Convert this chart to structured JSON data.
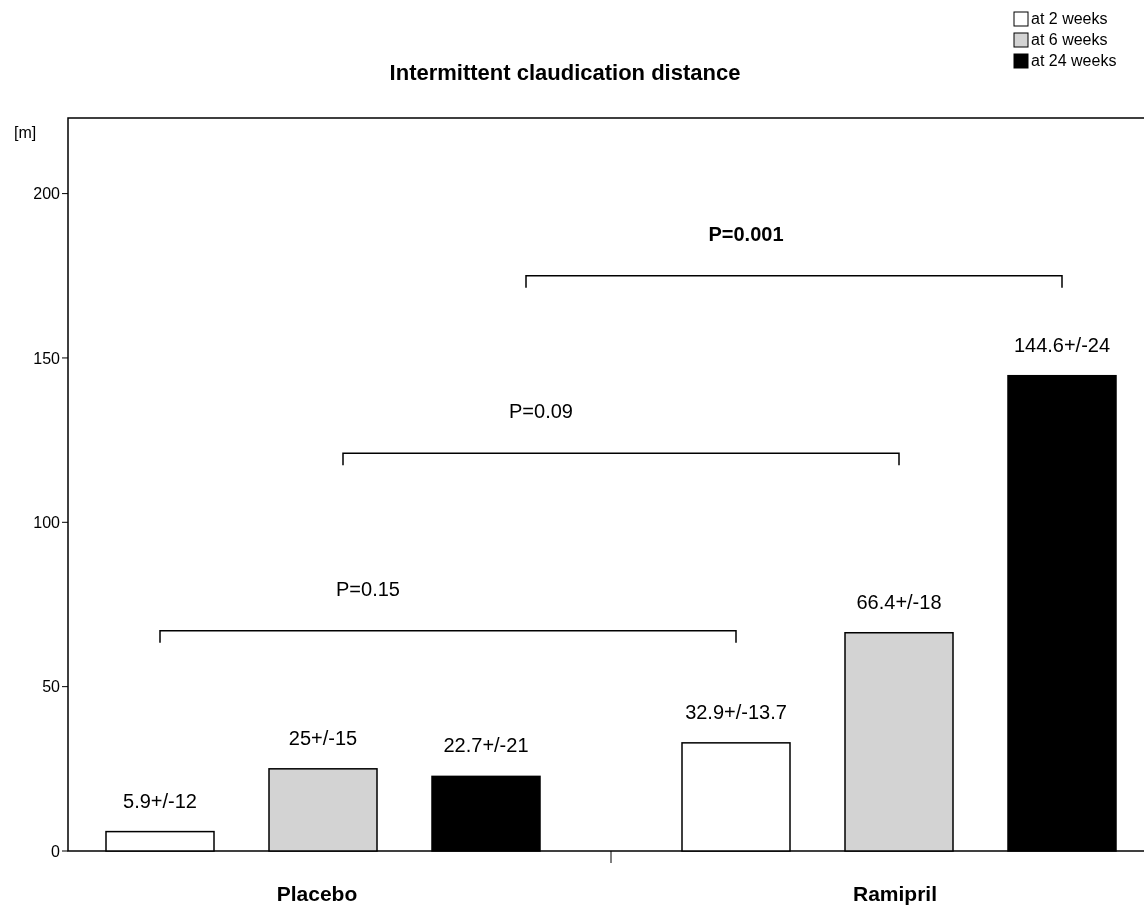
{
  "chart_data": {
    "type": "bar",
    "title": "Intermittent claudication distance",
    "ylabel": "[m]",
    "categories": [
      "Placebo",
      "Ramipril"
    ],
    "series": [
      {
        "name": "at 2 weeks",
        "color": "#ffffff",
        "values": [
          5.9,
          32.9
        ],
        "value_labels": [
          "5.9+/-12",
          "32.9+/-13.7"
        ]
      },
      {
        "name": "at 6 weeks",
        "color": "#d3d3d3",
        "values": [
          25,
          66.4
        ],
        "value_labels": [
          "25+/-15",
          "66.4+/-18"
        ]
      },
      {
        "name": "at 24 weeks",
        "color": "#000000",
        "values": [
          22.7,
          144.6
        ],
        "value_labels": [
          "22.7+/-21",
          "144.6+/-24"
        ]
      }
    ],
    "ylim": [
      0,
      223
    ],
    "yticks": [
      0,
      50,
      100,
      150,
      200
    ],
    "grid": false,
    "legend": "top right",
    "annotations": [
      "P=0.15",
      "P=0.09",
      "P=0.001"
    ]
  }
}
